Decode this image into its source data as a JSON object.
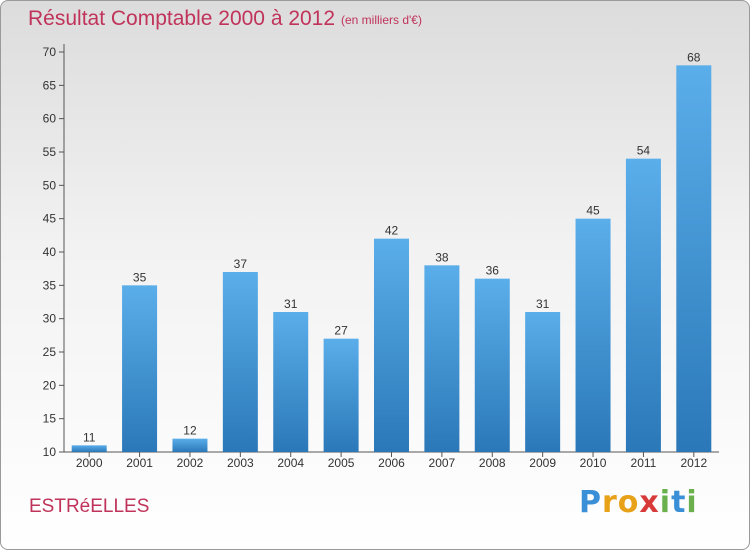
{
  "header": {
    "title": "Résultat Comptable 2000 à 2012",
    "subtitle": "(en milliers d'€)"
  },
  "footer": {
    "commune": "ESTRéELLES",
    "logo_letters": [
      "P",
      "r",
      "o",
      "x",
      "i",
      "t",
      "i"
    ],
    "logo_colors": [
      "#3a8fd6",
      "#e8a21a",
      "#e8a21a",
      "#d83a3a",
      "#6ab04c",
      "#3a8fd6",
      "#6ab04c"
    ]
  },
  "colors": {
    "bar_light": "#5aaeea",
    "bar_dark": "#2b78b8",
    "text": "#333333"
  },
  "chart_data": {
    "type": "bar",
    "title": "Résultat Comptable 2000 à 2012",
    "subtitle": "(en milliers d'€)",
    "categories": [
      "2000",
      "2001",
      "2002",
      "2003",
      "2004",
      "2005",
      "2006",
      "2007",
      "2008",
      "2009",
      "2010",
      "2011",
      "2012"
    ],
    "values": [
      11,
      35,
      12,
      37,
      31,
      27,
      42,
      38,
      36,
      31,
      45,
      54,
      68
    ],
    "ylim": [
      10,
      70
    ],
    "yticks": [
      10,
      15,
      20,
      25,
      30,
      35,
      40,
      45,
      50,
      55,
      60,
      65,
      70
    ],
    "grid": false,
    "xlabel": "",
    "ylabel": ""
  }
}
